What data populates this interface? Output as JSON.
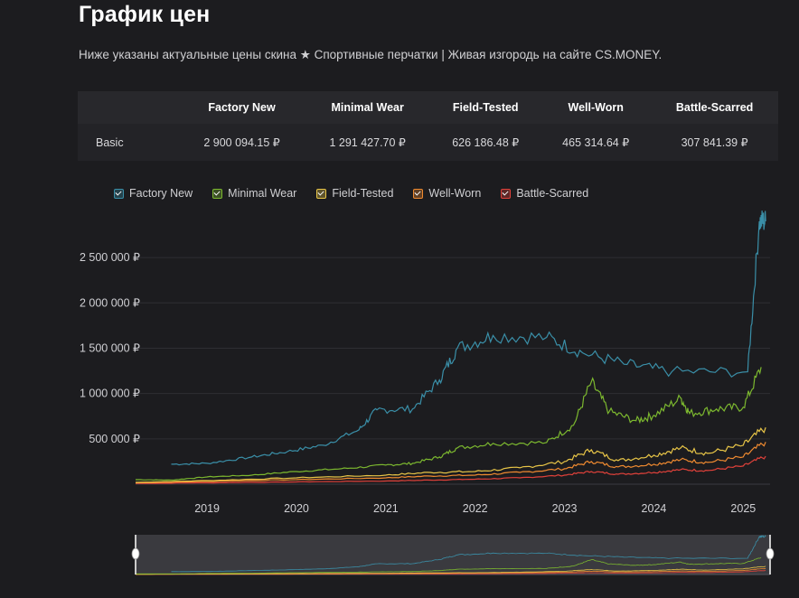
{
  "page": {
    "title": "График цен",
    "subtitle": "Ниже указаны актуальные цены скина ★ Спортивные перчатки | Живая изгородь на сайте CS.MONEY."
  },
  "table": {
    "headers": [
      "",
      "Factory New",
      "Minimal Wear",
      "Field-Tested",
      "Well-Worn",
      "Battle-Scarred"
    ],
    "rows": [
      {
        "label": "Basic",
        "values": [
          "2 900 094.15 ₽",
          "1 291 427.70 ₽",
          "626 186.48 ₽",
          "465 314.64 ₽",
          "307 841.39 ₽"
        ]
      }
    ]
  },
  "chart_data": {
    "type": "line",
    "title": "",
    "xlabel": "",
    "ylabel": "",
    "x_ticks": [
      "2019",
      "2020",
      "2021",
      "2022",
      "2023",
      "2024",
      "2025"
    ],
    "x_range": [
      2018.2,
      2025.3
    ],
    "y_ticks": [
      "500 000 ₽",
      "1 000 000 ₽",
      "1 500 000 ₽",
      "2 000 000 ₽",
      "2 500 000 ₽"
    ],
    "ylim": [
      0,
      2900000
    ],
    "grid": "horizontal",
    "legend_position": "top-left",
    "colors": {
      "Factory New": "#3a8fa8",
      "Minimal Wear": "#7cb82f",
      "Field-Tested": "#e8c547",
      "Well-Worn": "#ef8a30",
      "Battle-Scarred": "#e0413a"
    },
    "series": [
      {
        "name": "Factory New",
        "points": [
          [
            2018.6,
            220000
          ],
          [
            2019.0,
            230000
          ],
          [
            2019.5,
            300000
          ],
          [
            2019.9,
            360000
          ],
          [
            2020.3,
            430000
          ],
          [
            2020.7,
            600000
          ],
          [
            2020.9,
            820000
          ],
          [
            2021.3,
            830000
          ],
          [
            2021.6,
            1150000
          ],
          [
            2021.8,
            1500000
          ],
          [
            2022.2,
            1640000
          ],
          [
            2022.8,
            1620000
          ],
          [
            2023.2,
            1450000
          ],
          [
            2023.7,
            1320000
          ],
          [
            2024.2,
            1240000
          ],
          [
            2025.05,
            1240000
          ],
          [
            2025.18,
            2900000
          ],
          [
            2025.25,
            2900000
          ]
        ]
      },
      {
        "name": "Minimal Wear",
        "points": [
          [
            2018.2,
            50000
          ],
          [
            2018.6,
            45000
          ],
          [
            2019.0,
            80000
          ],
          [
            2019.5,
            100000
          ],
          [
            2020.0,
            140000
          ],
          [
            2020.5,
            170000
          ],
          [
            2021.0,
            210000
          ],
          [
            2021.3,
            230000
          ],
          [
            2021.6,
            300000
          ],
          [
            2021.8,
            400000
          ],
          [
            2022.2,
            450000
          ],
          [
            2022.8,
            460000
          ],
          [
            2023.1,
            650000
          ],
          [
            2023.3,
            1130000
          ],
          [
            2023.5,
            800000
          ],
          [
            2023.8,
            700000
          ],
          [
            2024.0,
            760000
          ],
          [
            2024.3,
            950000
          ],
          [
            2024.4,
            780000
          ],
          [
            2024.7,
            830000
          ],
          [
            2025.0,
            850000
          ],
          [
            2025.2,
            1291427
          ]
        ]
      },
      {
        "name": "Field-Tested",
        "points": [
          [
            2018.2,
            20000
          ],
          [
            2019.0,
            40000
          ],
          [
            2020.0,
            70000
          ],
          [
            2021.0,
            100000
          ],
          [
            2021.5,
            130000
          ],
          [
            2022.0,
            140000
          ],
          [
            2022.5,
            180000
          ],
          [
            2023.0,
            250000
          ],
          [
            2023.3,
            380000
          ],
          [
            2023.6,
            260000
          ],
          [
            2024.0,
            320000
          ],
          [
            2024.3,
            400000
          ],
          [
            2024.6,
            340000
          ],
          [
            2025.0,
            430000
          ],
          [
            2025.25,
            626186
          ]
        ]
      },
      {
        "name": "Well-Worn",
        "points": [
          [
            2018.2,
            15000
          ],
          [
            2019.0,
            30000
          ],
          [
            2020.0,
            50000
          ],
          [
            2021.0,
            70000
          ],
          [
            2021.5,
            90000
          ],
          [
            2022.0,
            100000
          ],
          [
            2022.5,
            130000
          ],
          [
            2023.0,
            170000
          ],
          [
            2023.3,
            250000
          ],
          [
            2023.6,
            190000
          ],
          [
            2024.0,
            220000
          ],
          [
            2024.3,
            270000
          ],
          [
            2024.6,
            240000
          ],
          [
            2025.0,
            300000
          ],
          [
            2025.25,
            465314
          ]
        ]
      },
      {
        "name": "Battle-Scarred",
        "points": [
          [
            2018.2,
            8000
          ],
          [
            2019.0,
            15000
          ],
          [
            2020.0,
            25000
          ],
          [
            2021.0,
            35000
          ],
          [
            2021.5,
            45000
          ],
          [
            2022.0,
            55000
          ],
          [
            2022.5,
            70000
          ],
          [
            2023.0,
            100000
          ],
          [
            2023.3,
            140000
          ],
          [
            2023.6,
            110000
          ],
          [
            2024.0,
            130000
          ],
          [
            2024.3,
            160000
          ],
          [
            2024.6,
            150000
          ],
          [
            2025.0,
            200000
          ],
          [
            2025.25,
            307841
          ]
        ]
      }
    ]
  }
}
